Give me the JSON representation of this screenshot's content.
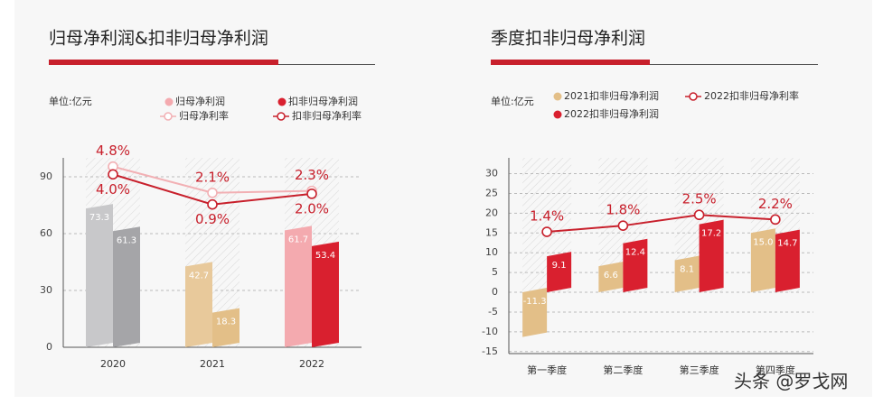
{
  "chart_data": [
    {
      "type": "bar",
      "title": "归母净利润&扣非归母净利润",
      "unit": "单位:亿元",
      "categories": [
        "2020",
        "2021",
        "2022"
      ],
      "ylim": [
        0,
        100
      ],
      "yticks": [
        0,
        30,
        60,
        90
      ],
      "y2lim": [
        -13.8,
        5.7
      ],
      "grid": true,
      "series": [
        {
          "name": "归母净利润",
          "type": "bar",
          "color": "#f4aaaf",
          "colors": [
            "#c8c8ca",
            "#e8c99b",
            "#f4aaaf"
          ],
          "values": [
            73.3,
            42.7,
            61.7
          ]
        },
        {
          "name": "扣非归母净利润",
          "type": "bar",
          "color": "#d9202f",
          "colors": [
            "#a5a5a8",
            "#e3bf88",
            "#d9202f"
          ],
          "values": [
            61.3,
            18.3,
            53.4
          ]
        },
        {
          "name": "归母净利率",
          "type": "line",
          "axis": "y2",
          "color": "#f2b0b4",
          "values": [
            4.8,
            2.1,
            2.3
          ],
          "value_labels": [
            "4.8%",
            "2.1%",
            "2.3%"
          ]
        },
        {
          "name": "扣非归母净利率",
          "type": "line",
          "axis": "y2",
          "color": "#c8202c",
          "values": [
            4.0,
            0.9,
            2.0
          ],
          "value_labels": [
            "4.0%",
            "0.9%",
            "2.0%"
          ]
        }
      ]
    },
    {
      "type": "bar",
      "title": "季度扣非归母净利润",
      "unit": "单位:亿元",
      "categories": [
        "第一季度",
        "第二季度",
        "第三季度",
        "第四季度"
      ],
      "ylim": [
        -15.5,
        34
      ],
      "yticks": [
        -15,
        -10,
        -5,
        0,
        5,
        10,
        15,
        20,
        25,
        30
      ],
      "y2lim": [
        -6.5,
        6.2
      ],
      "grid": true,
      "series": [
        {
          "name": "2021扣非归母净利润",
          "type": "bar",
          "color": "#e3bf88",
          "values": [
            -11.3,
            6.6,
            8.1,
            15.0
          ],
          "value_labels": [
            "-11.3",
            "6.6",
            "8.1",
            "15.0"
          ]
        },
        {
          "name": "2022扣非归母净利润",
          "type": "bar",
          "color": "#d9202f",
          "values": [
            9.1,
            12.4,
            17.2,
            14.7
          ]
        },
        {
          "name": "2022扣非归母净利率",
          "type": "line",
          "axis": "y2",
          "color": "#c8202c",
          "values": [
            1.4,
            1.8,
            2.5,
            2.2
          ],
          "value_labels": [
            "1.4%",
            "1.8%",
            "2.5%",
            "2.2%"
          ]
        }
      ]
    }
  ],
  "watermark": "头条 @罗戈网"
}
